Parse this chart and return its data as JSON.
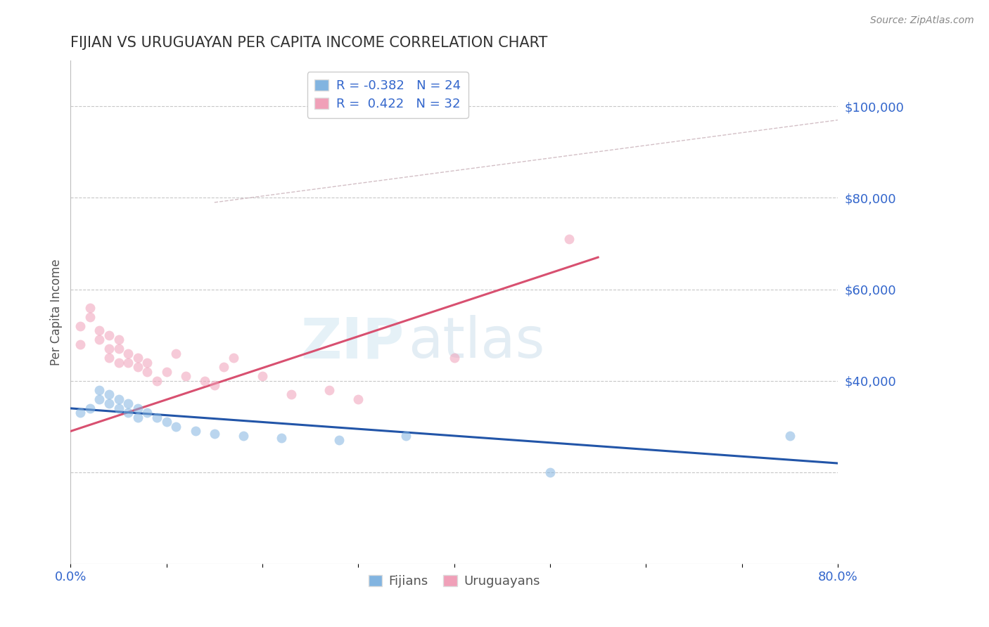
{
  "title": "FIJIAN VS URUGUAYAN PER CAPITA INCOME CORRELATION CHART",
  "source_text": "Source: ZipAtlas.com",
  "ylabel": "Per Capita Income",
  "watermark_ZIP": "ZIP",
  "watermark_atlas": "atlas",
  "xlim": [
    0.0,
    0.8
  ],
  "ylim": [
    0,
    110000
  ],
  "xticks": [
    0.0,
    0.1,
    0.2,
    0.3,
    0.4,
    0.5,
    0.6,
    0.7,
    0.8
  ],
  "xtick_labels": [
    "0.0%",
    "",
    "",
    "",
    "",
    "",
    "",
    "",
    "80.0%"
  ],
  "fijian_color": "#82b4e0",
  "uruguayan_color": "#f0a0b8",
  "fijian_line_color": "#2255a8",
  "uruguayan_line_color": "#d85070",
  "ref_line_color": "#c8b0b8",
  "axis_color": "#3366cc",
  "title_color": "#333333",
  "grid_color": "#c8c8c8",
  "background_color": "#ffffff",
  "right_label_color": "#3366cc",
  "R_fijian": -0.382,
  "N_fijian": 24,
  "R_uruguayan": 0.422,
  "N_uruguayan": 32,
  "fijian_scatter_x": [
    0.01,
    0.02,
    0.03,
    0.03,
    0.04,
    0.04,
    0.05,
    0.05,
    0.06,
    0.06,
    0.07,
    0.07,
    0.08,
    0.09,
    0.1,
    0.11,
    0.13,
    0.15,
    0.18,
    0.22,
    0.28,
    0.35,
    0.5,
    0.75
  ],
  "fijian_scatter_y": [
    33000,
    34000,
    36000,
    38000,
    37000,
    35000,
    36000,
    34000,
    35000,
    33000,
    34000,
    32000,
    33000,
    32000,
    31000,
    30000,
    29000,
    28500,
    28000,
    27500,
    27000,
    28000,
    20000,
    28000
  ],
  "uruguayan_scatter_x": [
    0.01,
    0.01,
    0.02,
    0.02,
    0.03,
    0.03,
    0.04,
    0.04,
    0.04,
    0.05,
    0.05,
    0.05,
    0.06,
    0.06,
    0.07,
    0.07,
    0.08,
    0.08,
    0.09,
    0.1,
    0.11,
    0.12,
    0.14,
    0.15,
    0.16,
    0.17,
    0.2,
    0.23,
    0.27,
    0.3,
    0.4,
    0.52
  ],
  "uruguayan_scatter_y": [
    48000,
    52000,
    56000,
    54000,
    51000,
    49000,
    50000,
    47000,
    45000,
    49000,
    47000,
    44000,
    46000,
    44000,
    45000,
    43000,
    44000,
    42000,
    40000,
    42000,
    46000,
    41000,
    40000,
    39000,
    43000,
    45000,
    41000,
    37000,
    38000,
    36000,
    45000,
    71000
  ],
  "fijian_trend_x": [
    0.0,
    0.8
  ],
  "fijian_trend_y": [
    34000,
    22000
  ],
  "uruguayan_trend_x": [
    0.0,
    0.55
  ],
  "uruguayan_trend_y": [
    29000,
    67000
  ],
  "ref_line_x": [
    0.15,
    0.8
  ],
  "ref_line_y": [
    79000,
    97000
  ],
  "ytick_values": [
    20000,
    40000,
    60000,
    80000,
    100000
  ],
  "ytick_labels_right": [
    "",
    "$40,000",
    "$60,000",
    "$80,000",
    "$100,000"
  ],
  "scatter_size": 100,
  "scatter_alpha": 0.55,
  "legend_fijian_label": "R = -0.382   N = 24",
  "legend_uruguayan_label": "R =  0.422   N = 32"
}
